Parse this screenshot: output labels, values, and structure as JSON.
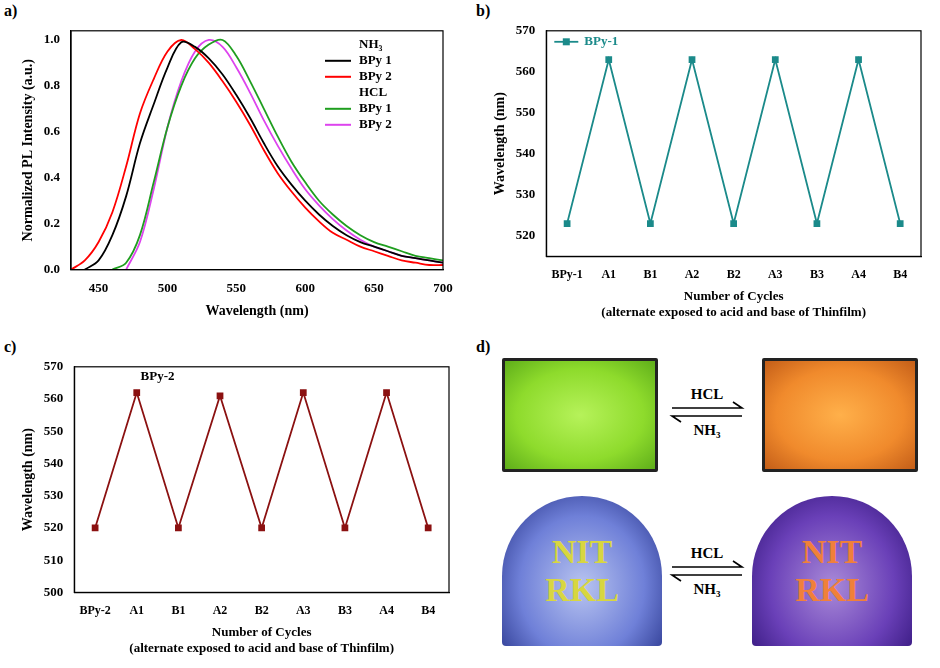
{
  "chart_data": [
    {
      "panel_label": "a)",
      "type": "line",
      "x_label": "Wavelength (nm)",
      "y_label": "Normalized PL Intensity (a.u.)",
      "x": [
        430,
        440,
        450,
        460,
        470,
        480,
        490,
        500,
        510,
        520,
        530,
        540,
        550,
        560,
        570,
        580,
        590,
        600,
        610,
        620,
        630,
        640,
        650,
        660,
        670,
        680,
        690,
        700
      ],
      "series": [
        {
          "name": "BPy 1",
          "group": "NH₃",
          "color": "#000000",
          "values": [
            null,
            0.0,
            0.04,
            0.15,
            0.32,
            0.55,
            0.72,
            0.88,
            0.99,
            0.97,
            0.92,
            0.85,
            0.76,
            0.66,
            0.55,
            0.45,
            0.37,
            0.3,
            0.24,
            0.19,
            0.15,
            0.12,
            0.1,
            0.08,
            0.06,
            0.05,
            0.04,
            0.03
          ]
        },
        {
          "name": "BPy 2",
          "group": "NH₃",
          "color": "#ff0000",
          "values": [
            0.0,
            0.04,
            0.12,
            0.25,
            0.45,
            0.68,
            0.83,
            0.95,
            1.0,
            0.96,
            0.9,
            0.82,
            0.73,
            0.63,
            0.52,
            0.42,
            0.34,
            0.27,
            0.21,
            0.16,
            0.13,
            0.1,
            0.08,
            0.06,
            0.04,
            0.03,
            0.02,
            0.02
          ]
        },
        {
          "name": "BPy 1",
          "group": "HCL",
          "color": "#1f9e1f",
          "values": [
            null,
            null,
            null,
            0.0,
            0.03,
            0.15,
            0.38,
            0.62,
            0.8,
            0.92,
            0.98,
            1.0,
            0.93,
            0.82,
            0.7,
            0.58,
            0.47,
            0.38,
            0.3,
            0.24,
            0.19,
            0.15,
            0.12,
            0.1,
            0.08,
            0.06,
            0.05,
            0.04
          ]
        },
        {
          "name": "BPy 2",
          "group": "HCL",
          "color": "#dd44ee",
          "values": [
            null,
            null,
            null,
            null,
            0.0,
            0.12,
            0.35,
            0.62,
            0.82,
            0.95,
            1.0,
            0.97,
            0.88,
            0.77,
            0.65,
            0.54,
            0.44,
            0.35,
            0.28,
            0.22,
            0.17,
            0.13,
            0.1,
            0.08,
            0.06,
            0.05,
            0.04,
            0.03
          ]
        }
      ],
      "xlim": [
        430,
        700
      ],
      "xticks": [
        450,
        500,
        550,
        600,
        650,
        700
      ],
      "ylim": [
        0,
        1.04
      ],
      "yticks": [
        {
          "value": 0,
          "label": "0.0"
        },
        {
          "value": 0.2,
          "label": "0.2"
        },
        {
          "value": 0.4,
          "label": "0.4"
        },
        {
          "value": 0.6,
          "label": "0.6"
        },
        {
          "value": 0.8,
          "label": "0.8"
        },
        {
          "value": 1,
          "label": "1.0"
        }
      ],
      "grid": false,
      "legend": "upper right"
    },
    {
      "panel_label": "b)",
      "type": "line",
      "x_label": [
        "Number of Cycles",
        "(alternate exposed to acid and base of Thinfilm)"
      ],
      "y_label": "Wavelength (nm)",
      "categories": [
        "BPy-1",
        "A1",
        "B1",
        "A2",
        "B2",
        "A3",
        "B3",
        "A4",
        "B4"
      ],
      "series": [
        {
          "name": "BPy-1",
          "color": "#1b8a8a",
          "marker": "square",
          "values": [
            523,
            563,
            523,
            563,
            523,
            563,
            523,
            563,
            523
          ]
        }
      ],
      "ylim": [
        515,
        570
      ],
      "yticks": [
        520,
        530,
        540,
        550,
        560,
        570
      ],
      "grid": false,
      "legend": "upper left"
    },
    {
      "panel_label": "c)",
      "type": "line",
      "x_label": [
        "Number of Cycles",
        "(alternate exposed to acid and base of Thinfilm)"
      ],
      "y_label": "Wavelength (nm)",
      "annotation": "BPy-2",
      "categories": [
        "BPy-2",
        "A1",
        "B1",
        "A2",
        "B2",
        "A3",
        "B3",
        "A4",
        "B4"
      ],
      "series": [
        {
          "color": "#8b1111",
          "marker": "square",
          "values": [
            520,
            562,
            520,
            561,
            520,
            562,
            520,
            562,
            520
          ]
        }
      ],
      "ylim": [
        500,
        570
      ],
      "yticks": [
        500,
        510,
        520,
        530,
        540,
        550,
        560,
        570
      ],
      "grid": false
    }
  ],
  "panel_d": {
    "panel_label": "d)",
    "forward": "HCL",
    "backward": "NH₃",
    "writing": [
      "NIT",
      "RKL"
    ]
  }
}
